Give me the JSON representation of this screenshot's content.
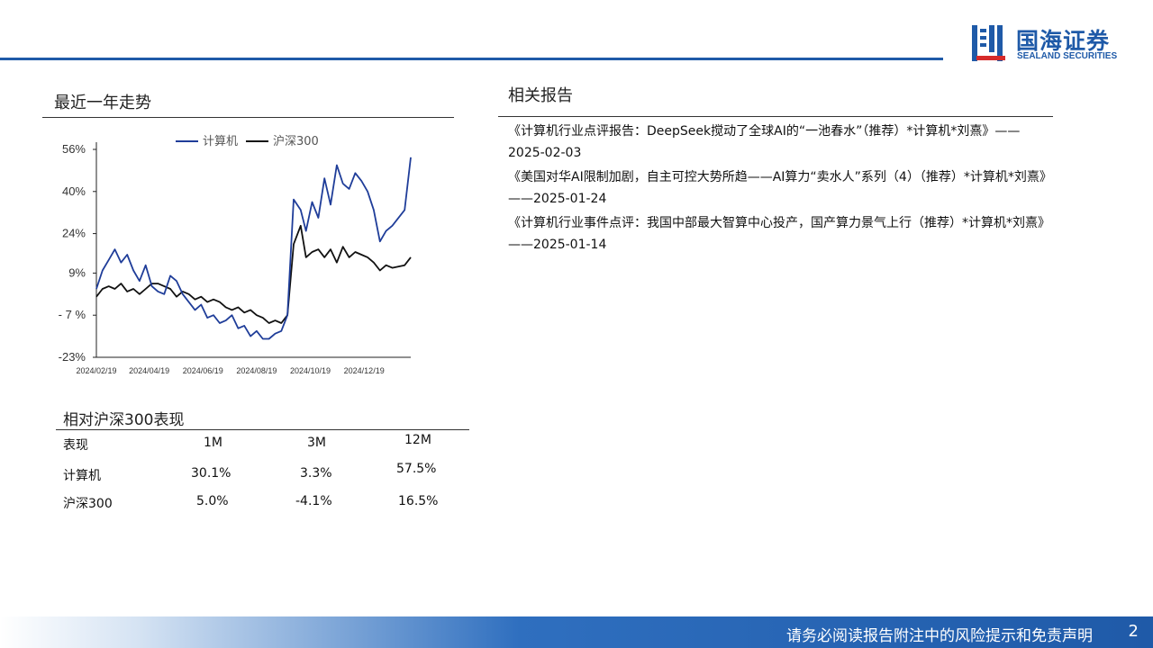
{
  "header": {
    "logo_cn": "国海证券",
    "logo_en": "SEALAND SECURITIES",
    "accent_color": "#1f5aa8"
  },
  "trend_section": {
    "title": "最近一年走势"
  },
  "chart_data": {
    "type": "line",
    "title": "",
    "xlabel": "",
    "ylabel": "",
    "ylim": [
      -23,
      56
    ],
    "y_ticks": [
      "56%",
      "40%",
      "24%",
      "9%",
      "- 7 %",
      "-23%"
    ],
    "y_tick_values": [
      56,
      40,
      24,
      9,
      -7,
      -23
    ],
    "x_ticks": [
      "2024/02/19",
      "2024/04/19",
      "2024/06/19",
      "2024/08/19",
      "2024/10/19",
      "2024/12/19"
    ],
    "x": [
      "2024-02-19",
      "2024-02-26",
      "2024-03-04",
      "2024-03-11",
      "2024-03-18",
      "2024-03-25",
      "2024-04-01",
      "2024-04-08",
      "2024-04-15",
      "2024-04-22",
      "2024-04-29",
      "2024-05-06",
      "2024-05-13",
      "2024-05-20",
      "2024-05-27",
      "2024-06-03",
      "2024-06-10",
      "2024-06-17",
      "2024-06-24",
      "2024-07-01",
      "2024-07-08",
      "2024-07-15",
      "2024-07-22",
      "2024-07-29",
      "2024-08-05",
      "2024-08-12",
      "2024-08-19",
      "2024-08-26",
      "2024-09-02",
      "2024-09-09",
      "2024-09-16",
      "2024-09-23",
      "2024-09-30",
      "2024-10-08",
      "2024-10-14",
      "2024-10-21",
      "2024-10-28",
      "2024-11-04",
      "2024-11-11",
      "2024-11-18",
      "2024-11-25",
      "2024-12-02",
      "2024-12-09",
      "2024-12-16",
      "2024-12-23",
      "2024-12-30",
      "2025-01-06",
      "2025-01-13",
      "2025-01-20",
      "2025-02-03",
      "2025-02-10"
    ],
    "series": [
      {
        "name": "计算机",
        "color": "#1f3d99",
        "values": [
          3,
          10,
          14,
          18,
          13,
          16,
          10,
          6,
          12,
          4,
          2,
          1,
          8,
          6,
          1,
          -2,
          -5,
          -3,
          -8,
          -7,
          -10,
          -9,
          -7,
          -12,
          -11,
          -15,
          -13,
          -16,
          -16,
          -14,
          -13,
          -7,
          37,
          33,
          25,
          36,
          30,
          45,
          35,
          50,
          43,
          41,
          47,
          44,
          40,
          33,
          21,
          25,
          27,
          33,
          53
        ]
      },
      {
        "name": "沪深300",
        "color": "#111111",
        "values": [
          0,
          3,
          4,
          3,
          5,
          2,
          3,
          1,
          3,
          5,
          5,
          4,
          3,
          0,
          2,
          1,
          -1,
          0,
          -2,
          -1,
          -2,
          -4,
          -5,
          -4,
          -6,
          -5,
          -7,
          -8,
          -10,
          -9,
          -10,
          -7,
          20,
          27,
          15,
          17,
          18,
          15,
          18,
          13,
          19,
          15,
          17,
          16,
          15,
          13,
          10,
          12,
          11,
          12,
          15
        ]
      }
    ]
  },
  "perf_table": {
    "title": "相对沪深300表现",
    "headers": [
      "表现",
      "1M",
      "3M",
      "12M"
    ],
    "rows": [
      [
        "计算机",
        "30.1%",
        "3.3%",
        "57.5%"
      ],
      [
        "沪深300",
        "5.0%",
        "-4.1%",
        "16.5%"
      ]
    ]
  },
  "reports": {
    "title": "相关报告",
    "items": [
      "《计算机行业点评报告：DeepSeek搅动了全球AI的“一池春水”（推荐）*计算机*刘熹》——2025-02-03",
      "《美国对华AI限制加剧，自主可控大势所趋——AI算力“卖水人”系列（4）（推荐）*计算机*刘熹》——2025-01-24",
      "《计算机行业事件点评：我国中部最大智算中心投产，国产算力景气上行（推荐）*计算机*刘熹》——2025-01-14"
    ]
  },
  "footer": {
    "disclaimer": "请务必阅读报告附注中的风险提示和免责声明",
    "page": "2"
  }
}
